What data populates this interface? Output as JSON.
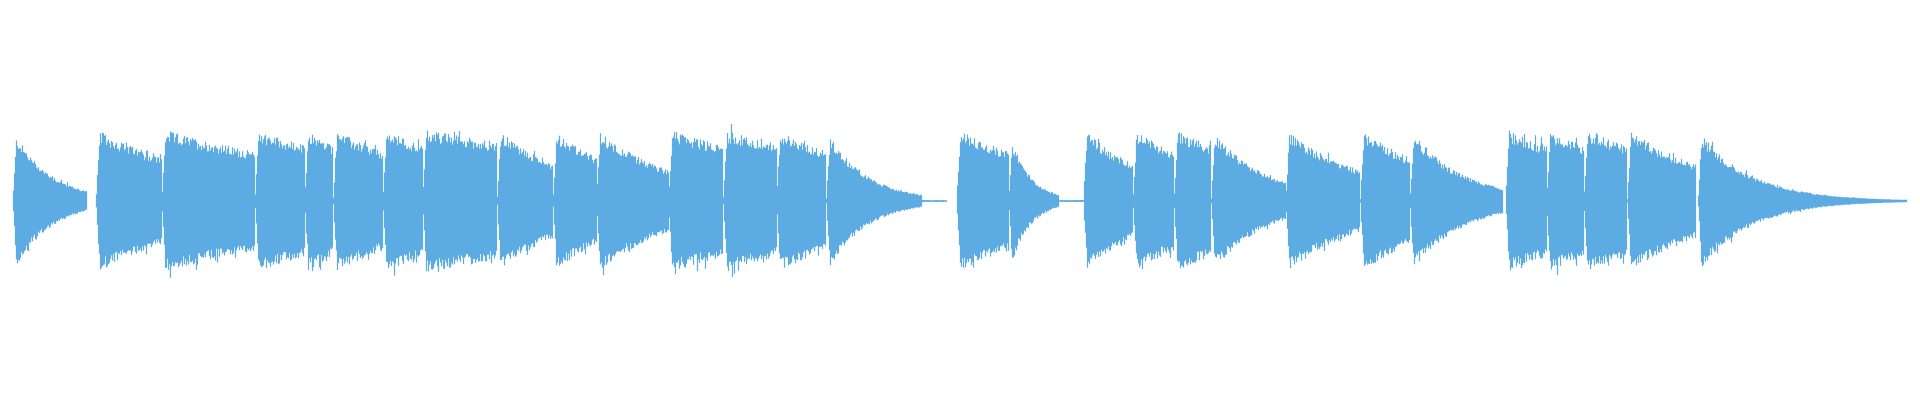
{
  "waveform": {
    "color": "#5dabe3"
  }
}
